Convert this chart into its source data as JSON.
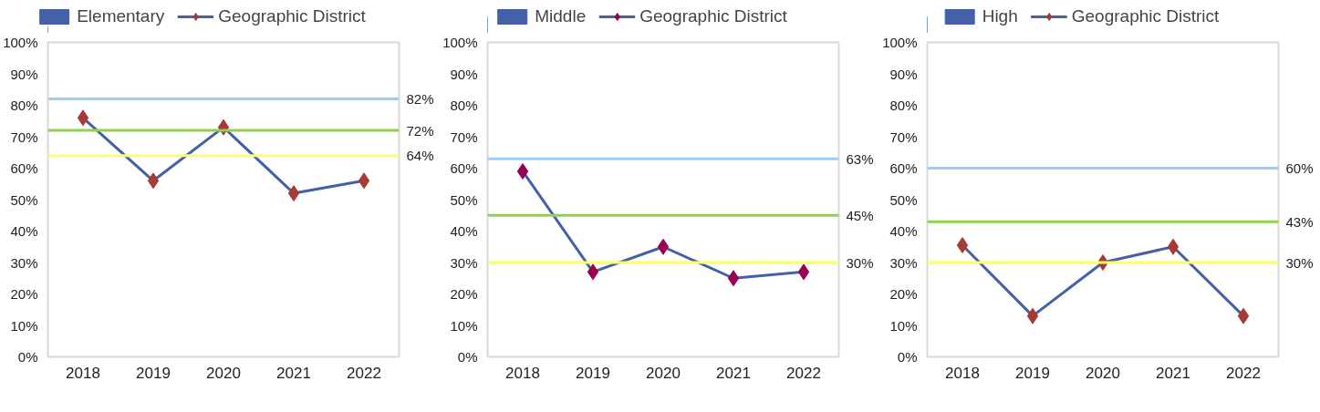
{
  "chart_data": [
    {
      "type": "line",
      "categories": [
        "2018",
        "2019",
        "2020",
        "2021",
        "2022"
      ],
      "ylim": [
        0,
        100
      ],
      "yticks": [
        {
          "value": 0,
          "label": "0%"
        },
        {
          "value": 10,
          "label": "10%"
        },
        {
          "value": 20,
          "label": "20%"
        },
        {
          "value": 30,
          "label": "30%"
        },
        {
          "value": 40,
          "label": "40%"
        },
        {
          "value": 50,
          "label": "50%"
        },
        {
          "value": 60,
          "label": "60%"
        },
        {
          "value": 70,
          "label": "70%"
        },
        {
          "value": 80,
          "label": "80%"
        },
        {
          "value": 90,
          "label": "90%"
        },
        {
          "value": 100,
          "label": "100%"
        }
      ],
      "grid": false,
      "legend": "top",
      "marker": "diamond",
      "series": [
        {
          "type": "bar",
          "name": "Elementary",
          "color": "#4360a8",
          "values": [
            null,
            null,
            null,
            null,
            null
          ]
        },
        {
          "name": "Geographic District",
          "color": "#4360a8",
          "colors": [
            "#a83a36",
            "#a83a36",
            "#a83a36",
            "#a83a36",
            "#a83a36"
          ],
          "values": [
            76,
            56,
            73,
            52,
            56
          ]
        }
      ],
      "ref_lines": [
        {
          "axis": "y",
          "value": 82,
          "label": "82%",
          "color": "#99ccff"
        },
        {
          "axis": "y",
          "value": 72,
          "label": "72%",
          "color": "#92d050"
        },
        {
          "axis": "y",
          "value": 64,
          "label": "64%",
          "color": "#ffff66"
        }
      ]
    },
    {
      "type": "line",
      "categories": [
        "2018",
        "2019",
        "2020",
        "2021",
        "2022"
      ],
      "ylim": [
        0,
        100
      ],
      "yticks": [
        {
          "value": 0,
          "label": "0%"
        },
        {
          "value": 10,
          "label": "10%"
        },
        {
          "value": 20,
          "label": "20%"
        },
        {
          "value": 30,
          "label": "30%"
        },
        {
          "value": 40,
          "label": "40%"
        },
        {
          "value": 50,
          "label": "50%"
        },
        {
          "value": 60,
          "label": "60%"
        },
        {
          "value": 70,
          "label": "70%"
        },
        {
          "value": 80,
          "label": "80%"
        },
        {
          "value": 90,
          "label": "90%"
        },
        {
          "value": 100,
          "label": "100%"
        }
      ],
      "grid": false,
      "legend": "top",
      "marker": "diamond",
      "series": [
        {
          "type": "bar",
          "name": "Middle",
          "color": "#4360a8",
          "values": [
            null,
            null,
            null,
            null,
            null
          ]
        },
        {
          "name": "Geographic District",
          "color": "#4360a8",
          "colors": [
            "#990050",
            "#990050",
            "#990050",
            "#990050",
            "#990050"
          ],
          "values": [
            59,
            27,
            35,
            25,
            27
          ]
        }
      ],
      "ref_lines": [
        {
          "axis": "y",
          "value": 63,
          "label": "63%",
          "color": "#99ccff"
        },
        {
          "axis": "y",
          "value": 45,
          "label": "45%",
          "color": "#92d050"
        },
        {
          "axis": "y",
          "value": 30,
          "label": "30%",
          "color": "#ffff66"
        }
      ]
    },
    {
      "type": "line",
      "categories": [
        "2018",
        "2019",
        "2020",
        "2021",
        "2022"
      ],
      "ylim": [
        0,
        100
      ],
      "yticks": [
        {
          "value": 0,
          "label": "0%"
        },
        {
          "value": 10,
          "label": "10%"
        },
        {
          "value": 20,
          "label": "20%"
        },
        {
          "value": 30,
          "label": "30%"
        },
        {
          "value": 40,
          "label": "40%"
        },
        {
          "value": 50,
          "label": "50%"
        },
        {
          "value": 60,
          "label": "60%"
        },
        {
          "value": 70,
          "label": "70%"
        },
        {
          "value": 80,
          "label": "80%"
        },
        {
          "value": 90,
          "label": "90%"
        },
        {
          "value": 100,
          "label": "100%"
        }
      ],
      "grid": false,
      "legend": "top",
      "marker": "diamond",
      "series": [
        {
          "type": "bar",
          "name": "High",
          "color": "#4360a8",
          "values": [
            null,
            null,
            null,
            null,
            null
          ]
        },
        {
          "name": "Geographic District",
          "color": "#4360a8",
          "colors": [
            "#a83a36",
            "#a83a36",
            "#a83a36",
            "#a83a36",
            "#a83a36"
          ],
          "values": [
            35.5,
            13,
            30,
            35,
            13
          ]
        }
      ],
      "ref_lines": [
        {
          "axis": "y",
          "value": 60,
          "label": "60%",
          "color": "#99ccff"
        },
        {
          "axis": "y",
          "value": 43,
          "label": "43%",
          "color": "#92d050"
        },
        {
          "axis": "y",
          "value": 30,
          "label": "30%",
          "color": "#ffff66"
        }
      ]
    }
  ]
}
